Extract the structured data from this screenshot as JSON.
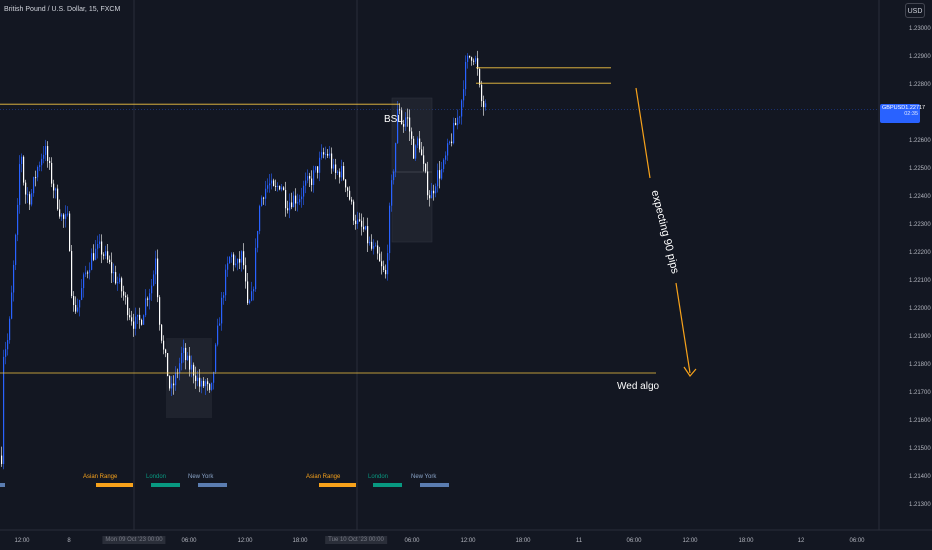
{
  "symbol_title": "British Pound / U.S. Dollar, 15, FXCM",
  "currency_button": "USD",
  "price_tag": {
    "symbol": "GBPUSD",
    "price": "1.22717",
    "countdown": "02:35"
  },
  "y_axis_labels": [
    "1.23000",
    "1.22900",
    "1.22800",
    "1.22600",
    "1.22500",
    "1.22400",
    "1.22300",
    "1.22200",
    "1.22100",
    "1.22000",
    "1.21900",
    "1.21800",
    "1.21700",
    "1.21600",
    "1.21500",
    "1.21400",
    "1.21300"
  ],
  "x_axis_labels": [
    "12:00",
    "8",
    "Mon 09 Oct '23  00:00",
    "06:00",
    "12:00",
    "18:00",
    "Tue 10 Oct '23  00:00",
    "06:00",
    "12:00",
    "18:00",
    "11",
    "06:00",
    "12:00",
    "18:00",
    "12",
    "06:00"
  ],
  "sessions": {
    "asian": "Asian Range",
    "london": "London",
    "newyork": "New York"
  },
  "annotations": {
    "bsl": "BSL",
    "wed_algo": "Wed algo",
    "expecting": "expecting 90 pips"
  },
  "colors": {
    "background": "#131722",
    "bull_candle": "#2962ff",
    "bear_candle": "#ffffff",
    "level_line": "#f5c542",
    "arrow": "#f7a21b",
    "asian": "#f7a21b",
    "london": "#089981",
    "newyork": "#5b7db1"
  },
  "chart_data": {
    "type": "candlestick",
    "symbol": "GBPUSD",
    "timeframe": "15",
    "y_range": [
      1.2128,
      1.2318
    ],
    "last_price": 1.22717,
    "levels": [
      {
        "label": "BSL",
        "price": 1.22735
      },
      {
        "label": "Wed algo",
        "price": 1.21775
      },
      {
        "label": "",
        "price": 1.22865
      },
      {
        "label": "",
        "price": 1.2281
      }
    ],
    "projection_pips": 90
  }
}
